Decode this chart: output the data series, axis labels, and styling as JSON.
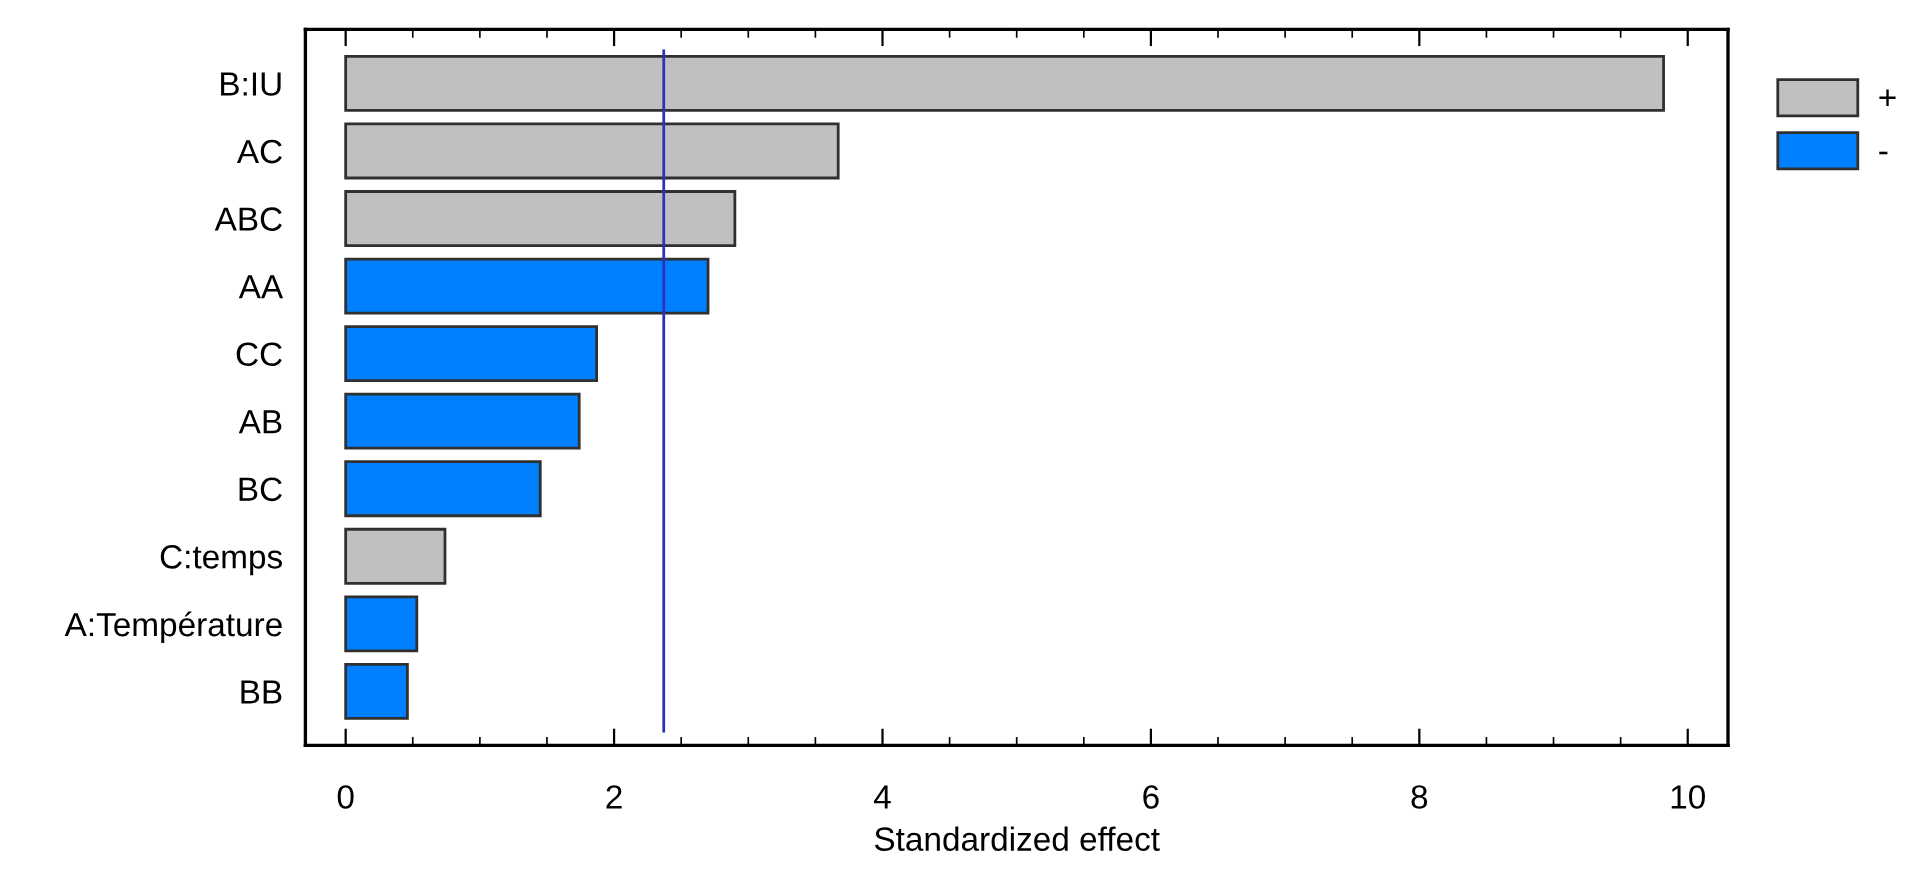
{
  "chart_data": {
    "type": "bar",
    "orientation": "horizontal",
    "xlabel": "Standardized effect",
    "categories": [
      "B:IU",
      "AC",
      "ABC",
      "AA",
      "CC",
      "AB",
      "BC",
      "C:temps",
      "A:Température",
      "BB"
    ],
    "series": [
      {
        "name": "+",
        "color": "#c0c0c0",
        "values": [
          9.82,
          3.67,
          2.9,
          null,
          null,
          null,
          null,
          0.74,
          null,
          null
        ]
      },
      {
        "name": "-",
        "color": "#0080ff",
        "values": [
          null,
          null,
          null,
          2.7,
          1.87,
          1.74,
          1.45,
          null,
          0.53,
          0.46
        ]
      }
    ],
    "xlim": [
      -0.3,
      10.3
    ],
    "xticks": [
      0,
      2,
      4,
      6,
      8,
      10
    ],
    "ref_lines": [
      {
        "axis": "x",
        "value": 2.37,
        "color": "#3030c0"
      }
    ],
    "grid": false,
    "legend": "top right"
  }
}
